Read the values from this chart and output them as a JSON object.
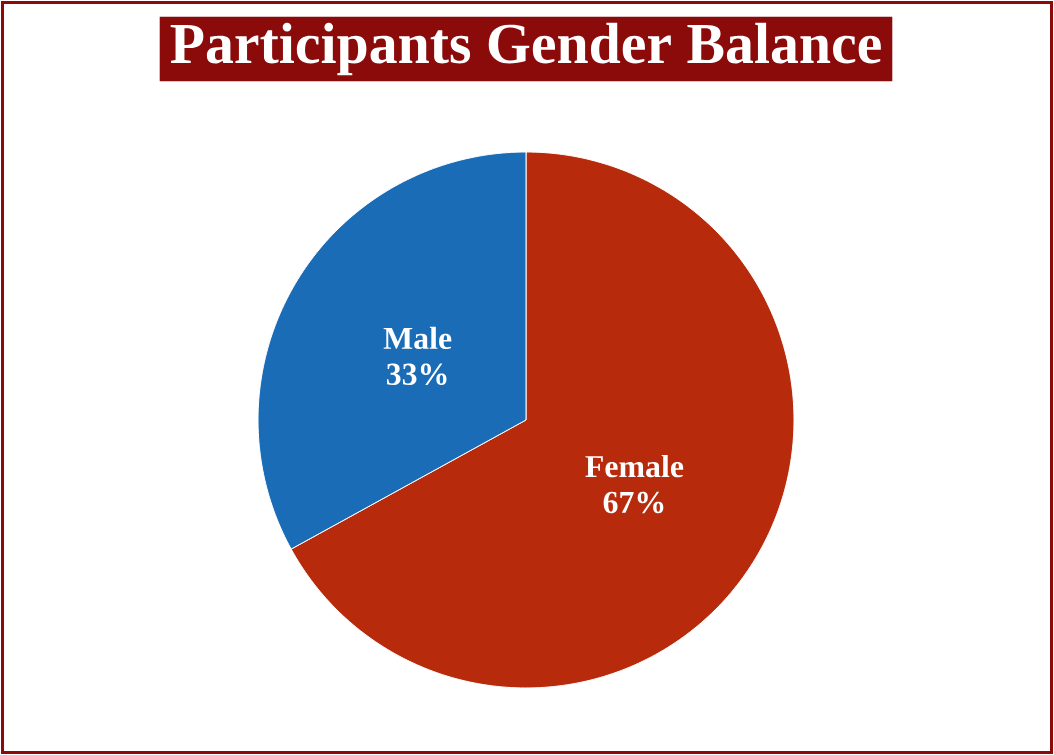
{
  "chart_data": {
    "type": "pie",
    "title": "Participants Gender Balance",
    "categories": [
      "Female",
      "Male"
    ],
    "values": [
      67,
      33
    ],
    "colors": [
      "#b82a0c",
      "#1a6cb6"
    ],
    "value_labels": [
      "67%",
      "33%"
    ]
  }
}
